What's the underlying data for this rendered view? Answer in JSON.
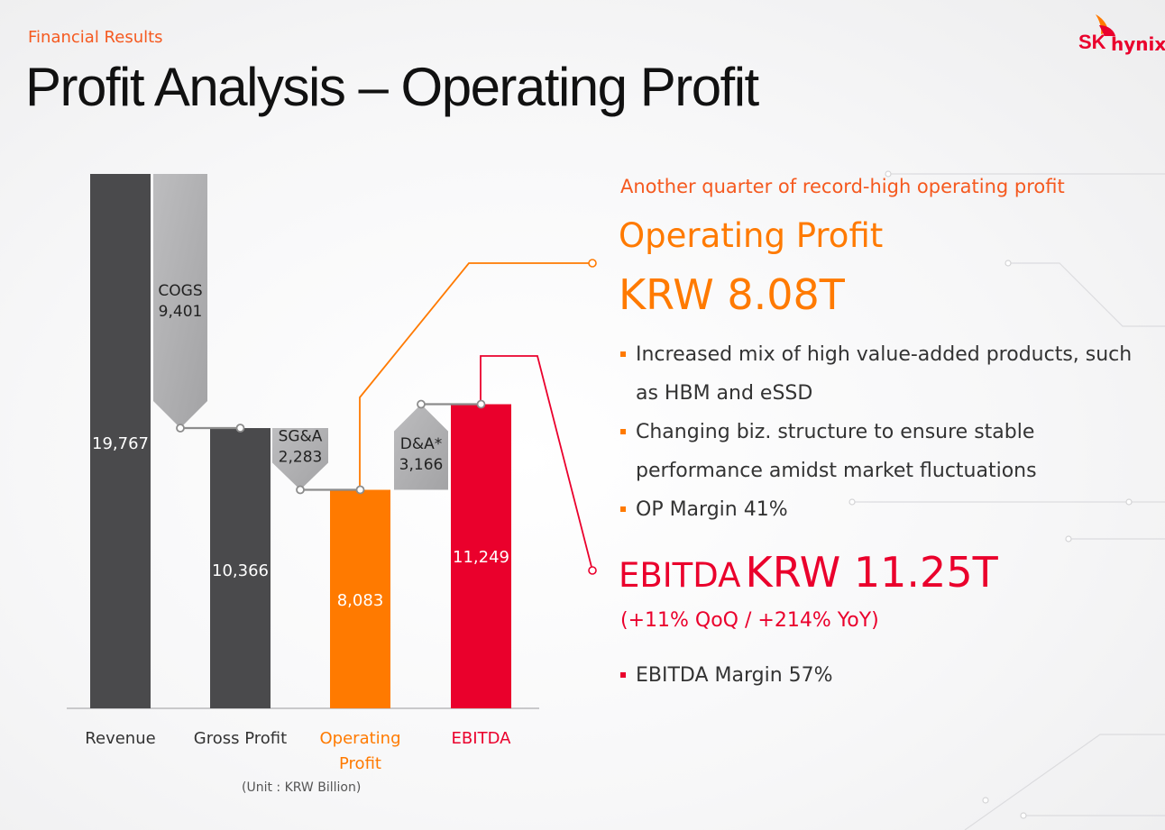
{
  "header": {
    "section_label": "Financial Results",
    "title": "Profit Analysis – Operating Profit",
    "logo_sk": "SK",
    "logo_hynix": "hynix"
  },
  "colors": {
    "accent_orange": "#ff7a00",
    "accent_red": "#ea002c",
    "bar_dark": "#4a4a4c",
    "connector_gray": "#8c8c8c"
  },
  "chart_data": {
    "type": "bar",
    "subtype": "waterfall",
    "unit_note": "(Unit : KRW Billion)",
    "ylim": [
      0,
      20800
    ],
    "categories": [
      "Revenue",
      "Gross Profit",
      "Operating Profit",
      "EBITDA"
    ],
    "category_labels": [
      [
        "Revenue"
      ],
      [
        "Gross Profit"
      ],
      [
        "Operating",
        "Profit"
      ],
      [
        "EBITDA"
      ]
    ],
    "bars": [
      {
        "name": "Revenue",
        "value": 19767,
        "label": "19,767",
        "color": "#4a4a4c",
        "label_color": "#ffffff"
      },
      {
        "name": "Gross Profit",
        "value": 10366,
        "label": "10,366",
        "color": "#4a4a4c",
        "label_color": "#ffffff"
      },
      {
        "name": "Operating Profit",
        "value": 8083,
        "label": "8,083",
        "color": "#ff7a00",
        "label_color": "#ffffff"
      },
      {
        "name": "EBITDA",
        "value": 11249,
        "label": "11,249",
        "color": "#ea002c",
        "label_color": "#ffffff"
      }
    ],
    "steps": [
      {
        "name": "COGS",
        "value": 9401,
        "label": "9,401",
        "direction": "down",
        "from": 19767,
        "to": 10366
      },
      {
        "name": "SG&A",
        "value": 2283,
        "label": "2,283",
        "direction": "down",
        "from": 10366,
        "to": 8083
      },
      {
        "name": "D&A*",
        "value": 3166,
        "label": "3,166",
        "direction": "up",
        "from": 8083,
        "to": 11249
      }
    ]
  },
  "summary": {
    "tagline": "Another quarter of record-high operating profit",
    "op_heading": "Operating Profit",
    "op_value": "KRW 8.08T",
    "op_bullets": [
      "Increased mix of high value-added products, such as HBM and eSSD",
      "Changing biz. structure to ensure stable performance amidst market fluctuations",
      "OP Margin 41%"
    ],
    "ebitda_label": "EBITDA",
    "ebitda_value": "KRW 11.25T",
    "ebitda_growth": "(+11% QoQ / +214% YoY)",
    "ebitda_bullet": "EBITDA Margin 57%"
  }
}
